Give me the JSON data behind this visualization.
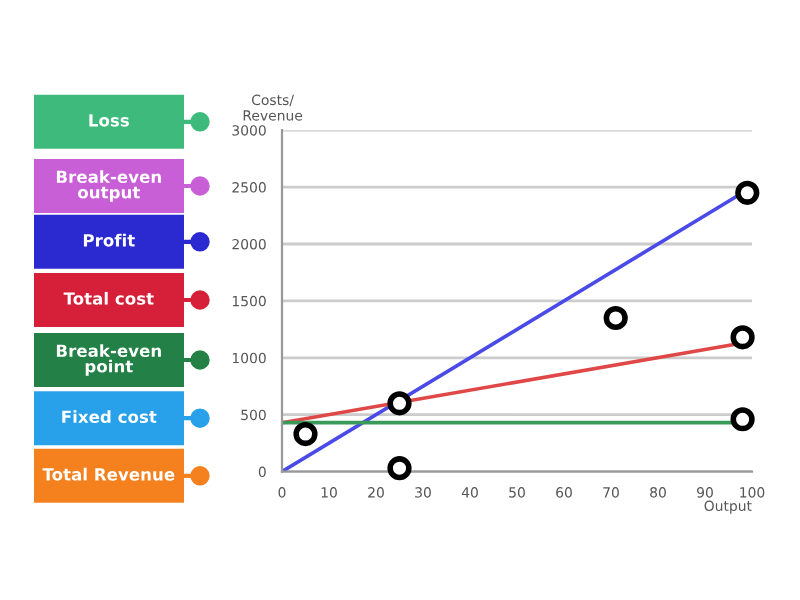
{
  "chart_data": {
    "type": "line",
    "xlabel": "Output",
    "ylabel": "Costs/\nRevenue",
    "xlim": [
      0,
      100
    ],
    "ylim": [
      0,
      3000
    ],
    "xticks": [
      0,
      10,
      20,
      30,
      40,
      50,
      60,
      70,
      80,
      90,
      100
    ],
    "yticks": [
      0,
      500,
      1000,
      1500,
      2000,
      2500,
      3000
    ],
    "grid": "y",
    "legend": false,
    "series": [
      {
        "color": "#4a4ae8",
        "x": [
          0,
          98
        ],
        "values": [
          0,
          2450
        ]
      },
      {
        "color": "#e04848",
        "x": [
          0,
          98
        ],
        "values": [
          430,
          1130
        ]
      },
      {
        "color": "#3a9a5a",
        "x": [
          0,
          98
        ],
        "values": [
          430,
          430
        ]
      },
      {
        "type": "scatter",
        "color": "#000000",
        "marker": "circle",
        "x": [
          5,
          25,
          25,
          71,
          98,
          98,
          99
        ],
        "values": [
          330,
          600,
          30,
          1350,
          1180,
          460,
          2450
        ]
      }
    ],
    "annotations": [
      "Loss",
      "Break-even\noutput",
      "Profit",
      "Total cost",
      "Break-even\npoint",
      "Fixed cost",
      "Total Revenue"
    ]
  }
}
